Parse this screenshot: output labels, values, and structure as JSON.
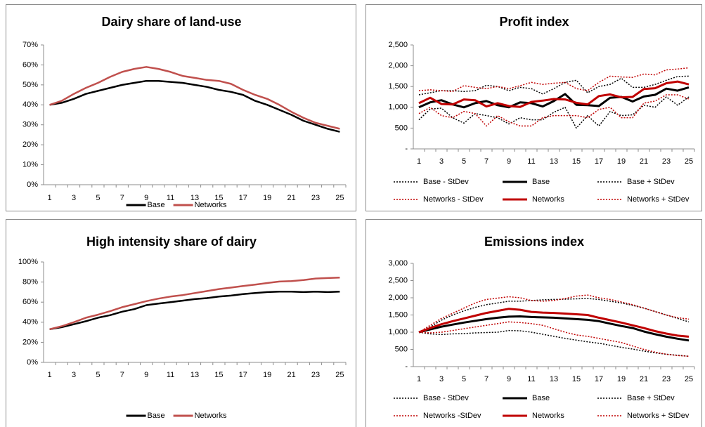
{
  "chart_data": [
    {
      "type": "line",
      "title": "Dairy share of land-use",
      "categories": [
        1,
        null,
        3,
        null,
        5,
        null,
        7,
        null,
        9,
        null,
        11,
        null,
        13,
        null,
        15,
        null,
        17,
        null,
        19,
        null,
        21,
        null,
        23,
        null,
        25
      ],
      "ylim": [
        0,
        70
      ],
      "yticks": [
        {
          "value": 0,
          "label": "0%"
        },
        {
          "value": 10,
          "label": "10%"
        },
        {
          "value": 20,
          "label": "20%"
        },
        {
          "value": 30,
          "label": "30%"
        },
        {
          "value": 40,
          "label": "40%"
        },
        {
          "value": 50,
          "label": "50%"
        },
        {
          "value": 60,
          "label": "60%"
        },
        {
          "value": 70,
          "label": "70%"
        }
      ],
      "legend": "bottom",
      "series": [
        {
          "name": "Base",
          "color": "#000000",
          "dash": "solid",
          "values": [
            40,
            41,
            43,
            45.5,
            47,
            48.5,
            50,
            51,
            52,
            52,
            51.5,
            51,
            50,
            49,
            47.5,
            46.5,
            45,
            42,
            40,
            37.5,
            35,
            32,
            30,
            28,
            26.5
          ]
        },
        {
          "name": "Networks",
          "color": "#c0504d",
          "dash": "solid",
          "values": [
            40,
            42,
            45.5,
            48.5,
            51,
            54,
            56.5,
            58,
            59,
            58,
            56.5,
            54.5,
            53.5,
            52.5,
            52,
            50.5,
            47.5,
            45,
            43,
            40,
            36.5,
            33.5,
            31,
            29.5,
            28
          ]
        }
      ]
    },
    {
      "type": "line",
      "title": "Profit index",
      "categories": [
        1,
        null,
        3,
        null,
        5,
        null,
        7,
        null,
        9,
        null,
        11,
        null,
        13,
        null,
        15,
        null,
        17,
        null,
        19,
        null,
        21,
        null,
        23,
        null,
        25
      ],
      "ylim": [
        0,
        2500
      ],
      "yticks": [
        {
          "value": 0,
          "label": "-"
        },
        500,
        {
          "value": 1000,
          "label": "1,000"
        },
        {
          "value": 1500,
          "label": "1,500"
        },
        {
          "value": 2000,
          "label": "2,000"
        },
        {
          "value": 2500,
          "label": "2,500"
        }
      ],
      "legend": "bottom",
      "series": [
        {
          "name": "Base - StDev",
          "color": "#000000",
          "dash": "dotted",
          "values": [
            700,
            960,
            980,
            750,
            620,
            850,
            800,
            750,
            600,
            750,
            700,
            700,
            880,
            1000,
            500,
            800,
            550,
            900,
            800,
            820,
            1050,
            1000,
            1250,
            1050,
            1250
          ]
        },
        {
          "name": "Base",
          "color": "#000000",
          "dash": "solid",
          "values": [
            1000,
            1120,
            1170,
            1070,
            1000,
            1100,
            1150,
            1050,
            1000,
            1120,
            1100,
            1020,
            1150,
            1320,
            1060,
            1050,
            1030,
            1230,
            1250,
            1140,
            1260,
            1300,
            1450,
            1400,
            1480
          ]
        },
        {
          "name": "Base + StDev",
          "color": "#000000",
          "dash": "dotted",
          "values": [
            1300,
            1350,
            1400,
            1400,
            1380,
            1400,
            1530,
            1500,
            1400,
            1480,
            1450,
            1320,
            1450,
            1600,
            1650,
            1350,
            1500,
            1550,
            1700,
            1480,
            1480,
            1550,
            1650,
            1740,
            1750
          ]
        },
        {
          "name": "Networks - StDev",
          "color": "#c00000",
          "dash": "dotted",
          "values": [
            850,
            1000,
            800,
            750,
            900,
            850,
            550,
            800,
            650,
            550,
            550,
            750,
            800,
            800,
            800,
            750,
            950,
            1000,
            750,
            750,
            1100,
            1150,
            1300,
            1300,
            1200
          ]
        },
        {
          "name": "Networks",
          "color": "#c00000",
          "dash": "solid",
          "values": [
            1100,
            1230,
            1080,
            1070,
            1190,
            1170,
            1020,
            1100,
            1030,
            1010,
            1130,
            1160,
            1200,
            1190,
            1110,
            1070,
            1270,
            1310,
            1240,
            1250,
            1440,
            1460,
            1580,
            1620,
            1550
          ]
        },
        {
          "name": "Networks + StDev",
          "color": "#c00000",
          "dash": "dotted",
          "values": [
            1400,
            1420,
            1400,
            1380,
            1520,
            1480,
            1450,
            1500,
            1450,
            1520,
            1600,
            1550,
            1580,
            1600,
            1450,
            1400,
            1600,
            1750,
            1730,
            1720,
            1800,
            1780,
            1900,
            1920,
            1950
          ]
        }
      ]
    },
    {
      "type": "line",
      "title": "High intensity share of dairy",
      "categories": [
        1,
        null,
        3,
        null,
        5,
        null,
        7,
        null,
        9,
        null,
        11,
        null,
        13,
        null,
        15,
        null,
        17,
        null,
        19,
        null,
        21,
        null,
        23,
        null,
        25
      ],
      "ylim": [
        0,
        100
      ],
      "yticks": [
        {
          "value": 0,
          "label": "0%"
        },
        {
          "value": 20,
          "label": "20%"
        },
        {
          "value": 40,
          "label": "40%"
        },
        {
          "value": 60,
          "label": "60%"
        },
        {
          "value": 80,
          "label": "80%"
        },
        {
          "value": 100,
          "label": "100%"
        }
      ],
      "legend": "bottom",
      "series": [
        {
          "name": "Base",
          "color": "#000000",
          "dash": "solid",
          "values": [
            33,
            35,
            38,
            41,
            44.5,
            47,
            50.5,
            53,
            57,
            58.5,
            60,
            61.5,
            63,
            64,
            65.5,
            66.5,
            68,
            69,
            70,
            70.5,
            70.5,
            70,
            70.5,
            70,
            70.5
          ]
        },
        {
          "name": "Networks",
          "color": "#c0504d",
          "dash": "solid",
          "values": [
            33,
            36,
            40,
            44.5,
            47.5,
            51,
            55,
            58,
            61,
            63.5,
            65.5,
            67,
            69,
            71,
            73,
            74.5,
            76,
            77.5,
            79,
            80.5,
            81,
            82,
            83.5,
            84,
            84.5
          ]
        }
      ]
    },
    {
      "type": "line",
      "title": "Emissions index",
      "categories": [
        1,
        null,
        3,
        null,
        5,
        null,
        7,
        null,
        9,
        null,
        11,
        null,
        13,
        null,
        15,
        null,
        17,
        null,
        19,
        null,
        21,
        null,
        23,
        null,
        25
      ],
      "ylim": [
        0,
        3000
      ],
      "yticks": [
        {
          "value": 0,
          "label": "-"
        },
        500,
        {
          "value": 1000,
          "label": "1,000"
        },
        {
          "value": 1500,
          "label": "1,500"
        },
        {
          "value": 2000,
          "label": "2,000"
        },
        {
          "value": 2500,
          "label": "2,500"
        },
        {
          "value": 3000,
          "label": "3,000"
        }
      ],
      "legend": "bottom",
      "series": [
        {
          "name": "Base - StDev",
          "color": "#000000",
          "dash": "dotted",
          "values": [
            1000,
            950,
            930,
            950,
            960,
            980,
            990,
            1000,
            1050,
            1040,
            1000,
            940,
            880,
            820,
            770,
            720,
            680,
            620,
            560,
            510,
            450,
            400,
            360,
            330,
            300
          ]
        },
        {
          "name": "Base",
          "color": "#000000",
          "dash": "solid",
          "values": [
            1000,
            1080,
            1160,
            1220,
            1280,
            1330,
            1380,
            1420,
            1450,
            1460,
            1440,
            1430,
            1420,
            1400,
            1380,
            1360,
            1320,
            1250,
            1180,
            1120,
            1020,
            940,
            870,
            810,
            760
          ]
        },
        {
          "name": "Base + StDev",
          "color": "#000000",
          "dash": "dotted",
          "values": [
            1000,
            1150,
            1350,
            1500,
            1620,
            1720,
            1800,
            1850,
            1900,
            1900,
            1920,
            1940,
            1950,
            1960,
            1970,
            1980,
            1950,
            1900,
            1850,
            1780,
            1700,
            1600,
            1500,
            1400,
            1300
          ]
        },
        {
          "name": "Networks -StDev",
          "color": "#c00000",
          "dash": "dotted",
          "values": [
            1000,
            980,
            1000,
            1050,
            1100,
            1150,
            1200,
            1250,
            1300,
            1280,
            1250,
            1200,
            1100,
            1000,
            920,
            880,
            820,
            760,
            700,
            600,
            500,
            420,
            360,
            320,
            300
          ]
        },
        {
          "name": "Networks",
          "color": "#c00000",
          "dash": "solid",
          "values": [
            1000,
            1120,
            1230,
            1320,
            1400,
            1480,
            1560,
            1620,
            1680,
            1650,
            1590,
            1570,
            1560,
            1540,
            1520,
            1500,
            1420,
            1350,
            1280,
            1200,
            1120,
            1030,
            960,
            900,
            870
          ]
        },
        {
          "name": "Networks + StDev",
          "color": "#c00000",
          "dash": "dotted",
          "values": [
            1000,
            1200,
            1400,
            1550,
            1700,
            1850,
            1950,
            1990,
            2030,
            2000,
            1920,
            1900,
            1920,
            1980,
            2050,
            2080,
            2000,
            1950,
            1880,
            1800,
            1700,
            1600,
            1500,
            1420,
            1380
          ]
        }
      ]
    }
  ]
}
